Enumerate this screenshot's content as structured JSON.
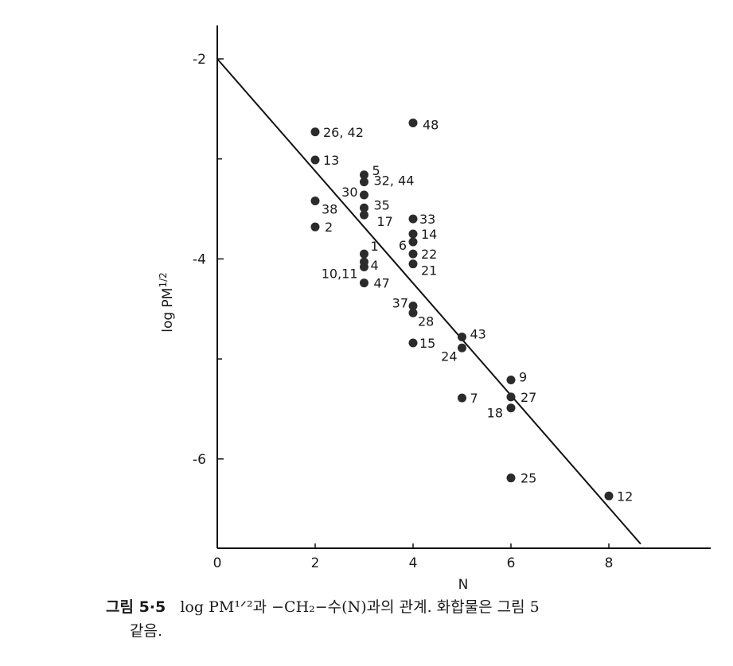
{
  "chart_data": {
    "type": "scatter",
    "xlabel": "N",
    "ylabel": "log PM",
    "ylabel_superscript": "1/2",
    "xlim": [
      0,
      10
    ],
    "ylim": [
      -7,
      -1.75
    ],
    "x_ticks": [
      0,
      2,
      4,
      6,
      8
    ],
    "x_tick_labels": [
      "0",
      "2",
      "4",
      "6",
      "8"
    ],
    "y_ticks": [
      -2,
      -4,
      -6
    ],
    "y_tick_labels": [
      "-2",
      "-4",
      "-6"
    ],
    "grid": false,
    "legend": "none",
    "points": [
      {
        "x": 2,
        "y": -2.73,
        "label": "26, 42"
      },
      {
        "x": 2,
        "y": -3.01,
        "label": "13"
      },
      {
        "x": 2,
        "y": -3.42,
        "label": "38"
      },
      {
        "x": 2,
        "y": -3.68,
        "label": "2"
      },
      {
        "x": 4,
        "y": -2.64,
        "label": "48"
      },
      {
        "x": 3,
        "y": -3.16,
        "label": "5"
      },
      {
        "x": 3,
        "y": -3.23,
        "label": "32, 44"
      },
      {
        "x": 3,
        "y": -3.36,
        "label": "30"
      },
      {
        "x": 3,
        "y": -3.49,
        "label": "35"
      },
      {
        "x": 3,
        "y": -3.56,
        "label": "17"
      },
      {
        "x": 4,
        "y": -3.6,
        "label": "33"
      },
      {
        "x": 4,
        "y": -3.75,
        "label": "14"
      },
      {
        "x": 4,
        "y": -3.83,
        "label": "6"
      },
      {
        "x": 4,
        "y": -3.95,
        "label": "22"
      },
      {
        "x": 4,
        "y": -4.05,
        "label": "21"
      },
      {
        "x": 3,
        "y": -3.95,
        "label": "1"
      },
      {
        "x": 3,
        "y": -4.03,
        "label": "4"
      },
      {
        "x": 3,
        "y": -4.08,
        "label": "10,11"
      },
      {
        "x": 3,
        "y": -4.24,
        "label": "47"
      },
      {
        "x": 4,
        "y": -4.47,
        "label": "37"
      },
      {
        "x": 4,
        "y": -4.54,
        "label": "28"
      },
      {
        "x": 4,
        "y": -4.84,
        "label": "15"
      },
      {
        "x": 5,
        "y": -4.78,
        "label": "43"
      },
      {
        "x": 5,
        "y": -4.89,
        "label": "24"
      },
      {
        "x": 6,
        "y": -5.21,
        "label": "9"
      },
      {
        "x": 6,
        "y": -5.38,
        "label": "27"
      },
      {
        "x": 6,
        "y": -5.49,
        "label": "18"
      },
      {
        "x": 5,
        "y": -5.39,
        "label": "7"
      },
      {
        "x": 6,
        "y": -6.19,
        "label": "25"
      },
      {
        "x": 8,
        "y": -6.37,
        "label": "12"
      }
    ],
    "fit_line": {
      "x": [
        0,
        8.65
      ],
      "y": [
        -2.0,
        -6.85
      ]
    },
    "line_color": "#111111",
    "point_color": "#2b2b2b"
  },
  "caption": {
    "label": "그림 5·5",
    "line1": "log PM¹ᐟ²과 −CH₂−수(N)과의 관계. 화합물은 그림 5",
    "line2": "같음."
  }
}
